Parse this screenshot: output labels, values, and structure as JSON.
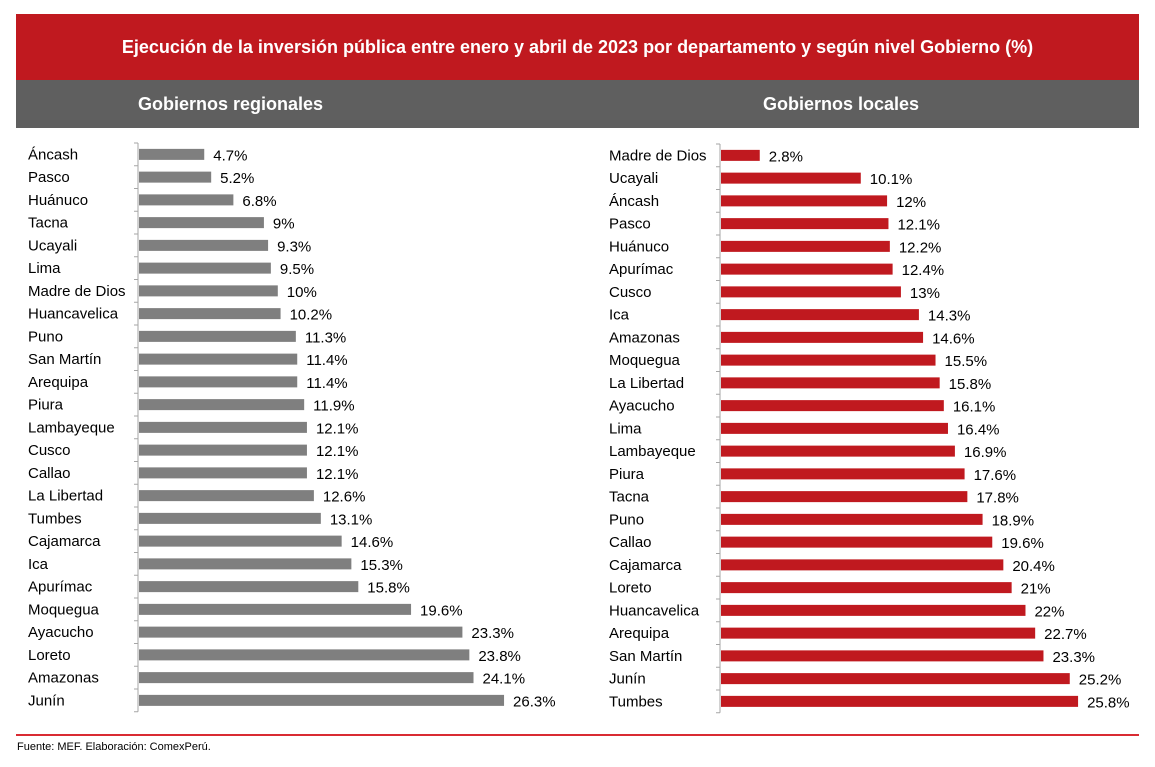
{
  "chart_data": [
    {
      "type": "bar",
      "orientation": "horizontal",
      "title": "Gobiernos regionales",
      "categories": [
        "Áncash",
        "Pasco",
        "Huánuco",
        "Tacna",
        "Ucayali",
        "Lima",
        "Madre de Dios",
        "Huancavelica",
        "Puno",
        "San Martín",
        "Arequipa",
        "Piura",
        "Lambayeque",
        "Cusco",
        "Callao",
        "La Libertad",
        "Tumbes",
        "Cajamarca",
        "Ica",
        "Apurímac",
        "Moquegua",
        "Ayacucho",
        "Loreto",
        "Amazonas",
        "Junín"
      ],
      "values": [
        4.7,
        5.2,
        6.8,
        9,
        9.3,
        9.5,
        10,
        10.2,
        11.3,
        11.4,
        11.4,
        11.9,
        12.1,
        12.1,
        12.1,
        12.6,
        13.1,
        14.6,
        15.3,
        15.8,
        19.6,
        23.3,
        23.8,
        24.1,
        26.3
      ],
      "labels": [
        "4.7%",
        "5.2%",
        "6.8%",
        "9%",
        "9.3%",
        "9.5%",
        "10%",
        "10.2%",
        "11.3%",
        "11.4%",
        "11.4%",
        "11.9%",
        "12.1%",
        "12.1%",
        "12.1%",
        "12.6%",
        "13.1%",
        "14.6%",
        "15.3%",
        "15.8%",
        "19.6%",
        "23.3%",
        "23.8%",
        "24.1%",
        "26.3%"
      ],
      "color": "#7f7f7f",
      "xlim": [
        0,
        27
      ]
    },
    {
      "type": "bar",
      "orientation": "horizontal",
      "title": "Gobiernos locales",
      "categories": [
        "Madre de Dios",
        "Ucayali",
        "Áncash",
        "Pasco",
        "Huánuco",
        "Apurímac",
        "Cusco",
        "Ica",
        "Amazonas",
        "Moquegua",
        "La Libertad",
        "Ayacucho",
        "Lima",
        "Lambayeque",
        "Piura",
        "Tacna",
        "Puno",
        "Callao",
        "Cajamarca",
        "Loreto",
        "Huancavelica",
        "Arequipa",
        "San Martín",
        "Junín",
        "Tumbes"
      ],
      "values": [
        2.8,
        10.1,
        12,
        12.1,
        12.2,
        12.4,
        13,
        14.3,
        14.6,
        15.5,
        15.8,
        16.1,
        16.4,
        16.9,
        17.6,
        17.8,
        18.9,
        19.6,
        20.4,
        21,
        22,
        22.7,
        23.3,
        25.2,
        25.8
      ],
      "labels": [
        "2.8%",
        "10.1%",
        "12%",
        "12.1%",
        "12.2%",
        "12.4%",
        "13%",
        "14.3%",
        "14.6%",
        "15.5%",
        "15.8%",
        "16.1%",
        "16.4%",
        "16.9%",
        "17.6%",
        "17.8%",
        "18.9%",
        "19.6%",
        "20.4%",
        "21%",
        "22%",
        "22.7%",
        "23.3%",
        "25.2%",
        "25.8%"
      ],
      "color": "#c0191f",
      "xlim": [
        0,
        27
      ]
    }
  ],
  "header": {
    "title": "Ejecución de la inversión pública entre enero y abril de 2023 por departamento y según nivel Gobierno (%)"
  },
  "footer": {
    "source": "Fuente: MEF. Elaboración: ComexPerú."
  }
}
